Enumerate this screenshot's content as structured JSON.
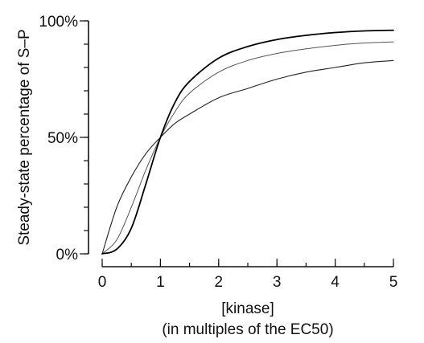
{
  "chart_data": {
    "type": "line",
    "title": "",
    "xlabel": "[kinase]",
    "xlabel_line2": "(in multiples of the EC50)",
    "ylabel": "Steady-state percentage of S–P",
    "xlim": [
      0,
      5
    ],
    "ylim": [
      0,
      100
    ],
    "x_ticks": [
      0,
      1,
      2,
      3,
      4,
      5
    ],
    "x_tick_labels": [
      "0",
      "1",
      "2",
      "3",
      "4",
      "5"
    ],
    "y_ticks": [
      0,
      50,
      100
    ],
    "y_tick_labels": [
      "0%",
      "50%",
      "100%"
    ],
    "y_minor_tick_step": 10,
    "x_minor_tick_step": 0.5,
    "grid": false,
    "legend": "none",
    "x": [
      0,
      0.25,
      0.5,
      0.75,
      1,
      1.25,
      1.5,
      2,
      2.5,
      3,
      3.5,
      4,
      4.5,
      5
    ],
    "series": [
      {
        "values": [
          0,
          20,
          33,
          43,
          50,
          56,
          60,
          67,
          71,
          75,
          78,
          80,
          82,
          83
        ],
        "color": "#222222",
        "width": 1.1
      },
      {
        "values": [
          0,
          6,
          20,
          36,
          50,
          61,
          69,
          78,
          83,
          86,
          88,
          89.5,
          90.5,
          91
        ],
        "color": "#555555",
        "width": 1.0
      },
      {
        "values": [
          0,
          2,
          11,
          30,
          50,
          65,
          74,
          84,
          89,
          92,
          93.8,
          95,
          95.7,
          96
        ],
        "color": "#000000",
        "width": 1.8
      }
    ]
  }
}
